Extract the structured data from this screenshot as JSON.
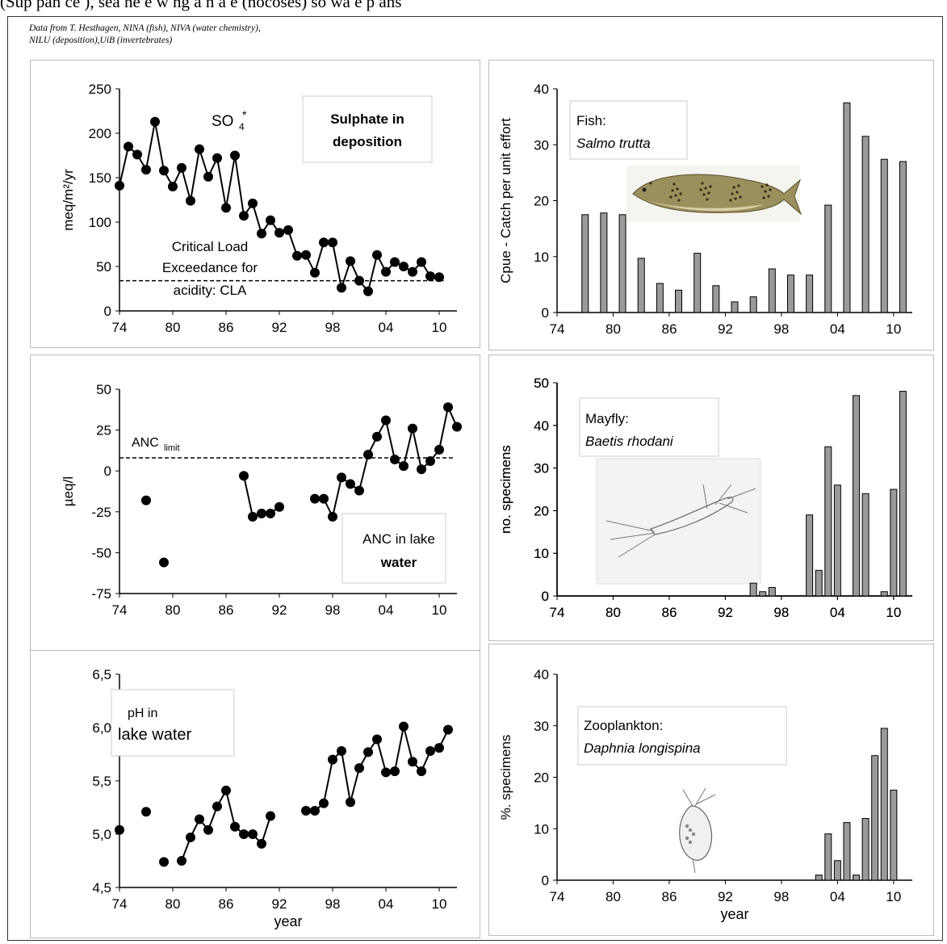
{
  "header_text": "(Sup pan ce ), sea ne e w ng a n a e (nocoses) so wa e p ans",
  "credit": {
    "line1": "Data from T. Hesthagen, NINA (fish), NIVA (water chemistry),",
    "line2": "NILU (deposition),UiB (invertebrates)"
  },
  "chart_data": [
    {
      "id": "sulphate",
      "type": "line",
      "ylabel": "meq/m²/yr",
      "ylim": [
        0,
        250
      ],
      "yticks": [
        "0",
        "50",
        "100",
        "150",
        "200",
        "250"
      ],
      "xlim": [
        1974,
        2012
      ],
      "xticks": [
        "74",
        "80",
        "86",
        "92",
        "98",
        "04",
        "10"
      ],
      "legend": {
        "line1": "Sulphate in",
        "line2": "deposition"
      },
      "species_label": "SO4*",
      "annotation": [
        "Critical Load",
        "Exceedance for",
        "acidity: CLA"
      ],
      "reference_line": 34,
      "series": [
        {
          "x": [
            1974,
            1975,
            1976,
            1977,
            1978,
            1979,
            1980,
            1981,
            1982,
            1983,
            1984,
            1985,
            1986,
            1987,
            1988,
            1989,
            1990,
            1991,
            1992,
            1993,
            1994,
            1995,
            1996,
            1997,
            1998,
            1999,
            2000,
            2001,
            2002,
            2003,
            2004,
            2005,
            2006,
            2007,
            2008,
            2009,
            2010
          ],
          "y": [
            141,
            185,
            176,
            159,
            213,
            158,
            140,
            161,
            124,
            182,
            151,
            172,
            116,
            175,
            107,
            121,
            87,
            102,
            88,
            91,
            62,
            63,
            43,
            77,
            77,
            26,
            56,
            34,
            22,
            63,
            44,
            55,
            50,
            44,
            55,
            39,
            38
          ]
        }
      ]
    },
    {
      "id": "fish",
      "type": "bar",
      "ylabel": "Cpue - Catch per unit effort",
      "ylim": [
        0,
        40
      ],
      "yticks": [
        "0",
        "10",
        "20",
        "30",
        "40"
      ],
      "xlim": [
        1974,
        2012
      ],
      "xticks": [
        "74",
        "80",
        "86",
        "92",
        "98",
        "04",
        "10"
      ],
      "legend": {
        "line1": "Fish:",
        "line2": "Salmo trutta"
      },
      "series": [
        {
          "x": [
            1977,
            1979,
            1981,
            1983,
            1985,
            1987,
            1989,
            1991,
            1993,
            1995,
            1997,
            1999,
            2001,
            2003,
            2005,
            2007,
            2009,
            2011
          ],
          "y": [
            17.5,
            17.8,
            17.5,
            9.7,
            5.2,
            4.0,
            10.6,
            4.8,
            1.9,
            2.8,
            7.8,
            6.7,
            6.7,
            19.2,
            37.5,
            31.5,
            27.4,
            27.0
          ]
        }
      ]
    },
    {
      "id": "anc",
      "type": "line",
      "ylabel": "µeq/l",
      "ylim": [
        -75,
        50
      ],
      "yticks": [
        "-75",
        "-50",
        "-25",
        "0",
        "25",
        "50"
      ],
      "xlim": [
        1974,
        2012
      ],
      "xticks": [
        "74",
        "80",
        "86",
        "92",
        "98",
        "04",
        "10"
      ],
      "legend": {
        "line1": "ANC in lake",
        "line2": "water"
      },
      "annotation": [
        "ANC",
        "limit"
      ],
      "reference_line": 8,
      "series": [
        {
          "x": [
            1977
          ],
          "y": [
            -18
          ]
        },
        {
          "x": [
            1979
          ],
          "y": [
            -56
          ]
        },
        {
          "x": [
            1988,
            1989,
            1990,
            1991,
            1992,
            1993
          ],
          "y": [
            -3,
            -28,
            -26,
            -26,
            -22,
            null
          ]
        },
        {
          "x": [
            1996,
            1997,
            1998,
            1999,
            2000,
            2001,
            2002,
            2003,
            2004,
            2005,
            2006,
            2007,
            2008,
            2009,
            2010,
            2011,
            2012
          ],
          "y": [
            -17,
            -17,
            -28,
            -4,
            -8,
            -12,
            10,
            21,
            31,
            7,
            3,
            26,
            1,
            6,
            13,
            39,
            27
          ]
        }
      ]
    },
    {
      "id": "mayfly",
      "type": "bar",
      "ylabel": "no. specimens",
      "ylim": [
        0,
        50
      ],
      "yticks": [
        "0",
        "10",
        "20",
        "30",
        "40",
        "50"
      ],
      "xlim": [
        1974,
        2012
      ],
      "xticks": [
        "74",
        "80",
        "86",
        "92",
        "98",
        "04",
        "10"
      ],
      "legend": {
        "line1": "Mayfly:",
        "line2": "Baetis rhodani"
      },
      "series": [
        {
          "x": [
            1995,
            1996,
            1997,
            2001,
            2002,
            2003,
            2004,
            2006,
            2007,
            2009,
            2010,
            2011
          ],
          "y": [
            3,
            1,
            2,
            19,
            6,
            35,
            26,
            47,
            24,
            1,
            25,
            48
          ]
        }
      ]
    },
    {
      "id": "ph",
      "type": "line",
      "ylabel": "",
      "xlabel": "year",
      "ylim": [
        4.5,
        6.5
      ],
      "yticks": [
        "4,5",
        "5,0",
        "5,5",
        "6,0",
        "6,5"
      ],
      "xlim": [
        1974,
        2012
      ],
      "xticks": [
        "74",
        "80",
        "86",
        "92",
        "98",
        "04",
        "10"
      ],
      "legend": {
        "line1": "pH in",
        "line2": "lake water"
      },
      "series": [
        {
          "x": [
            1974
          ],
          "y": [
            5.04
          ]
        },
        {
          "x": [
            1977
          ],
          "y": [
            5.21
          ]
        },
        {
          "x": [
            1979
          ],
          "y": [
            4.74
          ]
        },
        {
          "x": [
            1981,
            1982,
            1983,
            1984,
            1985,
            1986,
            1987,
            1988,
            1989,
            1990,
            1991
          ],
          "y": [
            4.75,
            4.97,
            5.14,
            5.04,
            5.26,
            5.41,
            5.07,
            5.0,
            5.0,
            4.91,
            5.17
          ]
        },
        {
          "x": [
            1995,
            1996,
            1997,
            1998,
            1999,
            2000,
            2001,
            2002,
            2003,
            2004,
            2005,
            2006,
            2007,
            2008,
            2009,
            2010,
            2011
          ],
          "y": [
            5.22,
            5.22,
            5.29,
            5.7,
            5.78,
            5.3,
            5.62,
            5.77,
            5.89,
            5.58,
            5.59,
            6.01,
            5.68,
            5.59,
            5.78,
            5.81,
            5.98
          ]
        }
      ]
    },
    {
      "id": "zooplankton",
      "type": "bar",
      "ylabel": "%. specimens",
      "xlabel": "year",
      "ylim": [
        0,
        40
      ],
      "yticks": [
        "0",
        "10",
        "20",
        "30",
        "40"
      ],
      "xlim": [
        1974,
        2012
      ],
      "xticks": [
        "74",
        "80",
        "86",
        "92",
        "98",
        "04",
        "10"
      ],
      "legend": {
        "line1": "Zooplankton:",
        "line2": "Daphnia longispina"
      },
      "series": [
        {
          "x": [
            2002,
            2003,
            2004,
            2005,
            2006,
            2007,
            2008,
            2009,
            2010,
            2011
          ],
          "y": [
            1,
            9,
            3.8,
            11.2,
            1,
            12,
            24.2,
            29.5,
            17.5,
            0
          ]
        }
      ]
    }
  ],
  "colors": {
    "bar_fill": "#9a9a9a",
    "marker": "#000000",
    "frame": "#bbbbbb"
  },
  "icons": {
    "fish": "brown-trout-illustration",
    "mayfly": "mayfly-nymph-sketch",
    "zooplankton": "daphnia-sketch"
  }
}
